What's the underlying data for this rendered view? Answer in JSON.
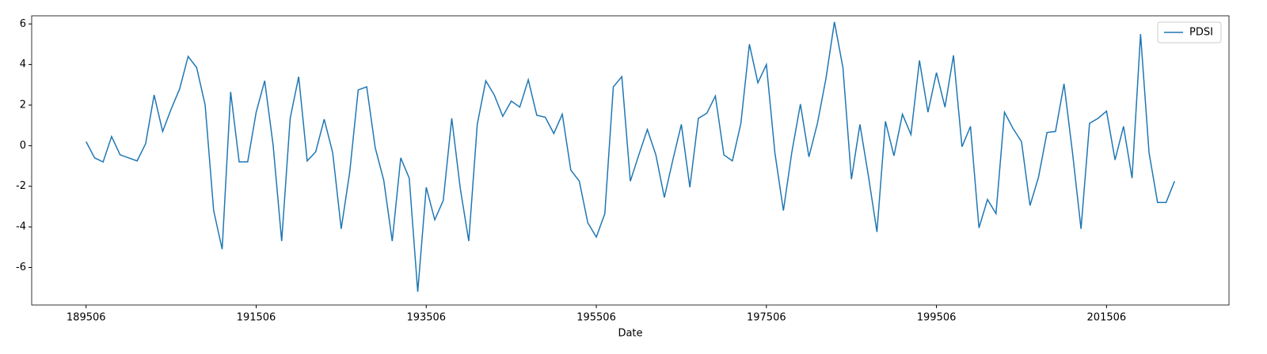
{
  "chart_data": {
    "type": "line",
    "x_label": "Date",
    "x": [
      189506,
      189606,
      189706,
      189806,
      189906,
      190006,
      190106,
      190206,
      190306,
      190406,
      190506,
      190606,
      190706,
      190806,
      190906,
      191006,
      191106,
      191206,
      191306,
      191406,
      191506,
      191606,
      191706,
      191806,
      191906,
      192006,
      192106,
      192206,
      192306,
      192406,
      192506,
      192606,
      192706,
      192806,
      192906,
      193006,
      193106,
      193206,
      193306,
      193406,
      193506,
      193606,
      193706,
      193806,
      193906,
      194006,
      194106,
      194206,
      194306,
      194406,
      194506,
      194606,
      194706,
      194806,
      194906,
      195006,
      195106,
      195206,
      195306,
      195406,
      195506,
      195606,
      195706,
      195806,
      195906,
      196006,
      196106,
      196206,
      196306,
      196406,
      196506,
      196606,
      196706,
      196806,
      196906,
      197006,
      197106,
      197206,
      197306,
      197406,
      197506,
      197606,
      197706,
      197806,
      197906,
      198006,
      198106,
      198206,
      198306,
      198406,
      198506,
      198606,
      198706,
      198806,
      198906,
      199006,
      199106,
      199206,
      199306,
      199406,
      199506,
      199606,
      199706,
      199806,
      199906,
      200006,
      200106,
      200206,
      200306,
      200406,
      200506,
      200606,
      200706,
      200806,
      200906,
      201006,
      201106,
      201206,
      201306,
      201406,
      201506,
      201606,
      201706,
      201806,
      201906,
      202006,
      202106,
      202206,
      202306
    ],
    "series": [
      {
        "name": "PDSI",
        "color": "#1f77b4",
        "values": [
          0.2,
          -0.6,
          -0.8,
          0.45,
          -0.45,
          -0.6,
          -0.75,
          0.1,
          2.5,
          0.7,
          1.8,
          2.8,
          4.4,
          3.85,
          2.0,
          -3.2,
          -5.1,
          2.65,
          -0.8,
          -0.8,
          1.65,
          3.2,
          0.0,
          -4.7,
          1.35,
          3.4,
          -0.75,
          -0.3,
          1.3,
          -0.35,
          -4.1,
          -1.3,
          2.75,
          2.9,
          -0.1,
          -1.7,
          -4.7,
          -0.6,
          -1.6,
          -7.2,
          -2.05,
          -3.65,
          -2.7,
          1.35,
          -2.1,
          -4.7,
          1.05,
          3.2,
          2.5,
          1.45,
          2.2,
          1.9,
          3.25,
          1.5,
          1.4,
          0.6,
          1.55,
          -1.2,
          -1.75,
          -3.8,
          -4.5,
          -3.35,
          2.9,
          3.4,
          -1.75,
          -0.45,
          0.8,
          -0.45,
          -2.55,
          -0.7,
          1.05,
          -2.05,
          1.35,
          1.6,
          2.45,
          -0.45,
          -0.75,
          1.1,
          5.0,
          3.1,
          4.0,
          -0.35,
          -3.2,
          -0.3,
          2.05,
          -0.55,
          1.1,
          3.3,
          6.1,
          3.85,
          -1.65,
          1.05,
          -1.5,
          -4.25,
          1.2,
          -0.5,
          1.55,
          0.55,
          4.2,
          1.65,
          3.6,
          1.9,
          4.45,
          -0.05,
          0.95,
          -4.05,
          -2.65,
          -3.35,
          1.65,
          0.85,
          0.2,
          -2.95,
          -1.55,
          0.65,
          0.7,
          3.05,
          -0.35,
          -4.1,
          1.1,
          1.35,
          1.7,
          -0.7,
          0.95,
          -1.6,
          5.5,
          -0.35,
          -2.8,
          -2.8,
          -1.75
        ]
      }
    ],
    "xlim": [
      188866,
      202946
    ],
    "ylim": [
      -7.85,
      6.4
    ],
    "xticks": [
      189506,
      191506,
      193506,
      195506,
      197506,
      199506,
      201506
    ],
    "yticks": [
      -6,
      -4,
      -2,
      0,
      2,
      4,
      6
    ],
    "grid": false,
    "legend": "upper right"
  }
}
